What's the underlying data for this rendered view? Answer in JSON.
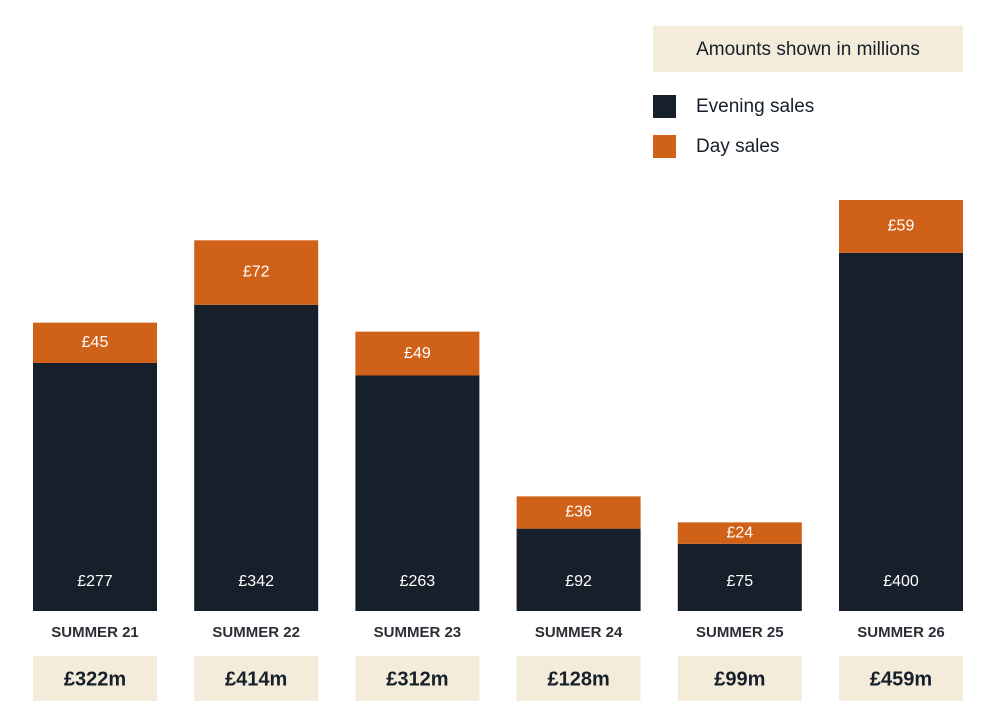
{
  "chart_data": {
    "type": "stacked-bar",
    "note": "Amounts shown in millions",
    "categories": [
      "SUMMER 21",
      "SUMMER 22",
      "SUMMER 23",
      "SUMMER 24",
      "SUMMER 25",
      "SUMMER 26"
    ],
    "series": [
      {
        "name": "Evening sales",
        "color": "#17202a",
        "values": [
          277,
          342,
          263,
          92,
          75,
          400
        ],
        "value_labels": [
          "£277",
          "£342",
          "£263",
          "£92",
          "£75",
          "£400"
        ]
      },
      {
        "name": "Day sales",
        "color": "#d06119",
        "values": [
          45,
          72,
          49,
          36,
          24,
          59
        ],
        "value_labels": [
          "£45",
          "£72",
          "£49",
          "£36",
          "£24",
          "£59"
        ]
      }
    ],
    "totals": {
      "values": [
        322,
        414,
        312,
        128,
        99,
        459
      ],
      "value_labels": [
        "£322m",
        "£414m",
        "£312m",
        "£128m",
        "£99m",
        "£459m"
      ]
    }
  }
}
